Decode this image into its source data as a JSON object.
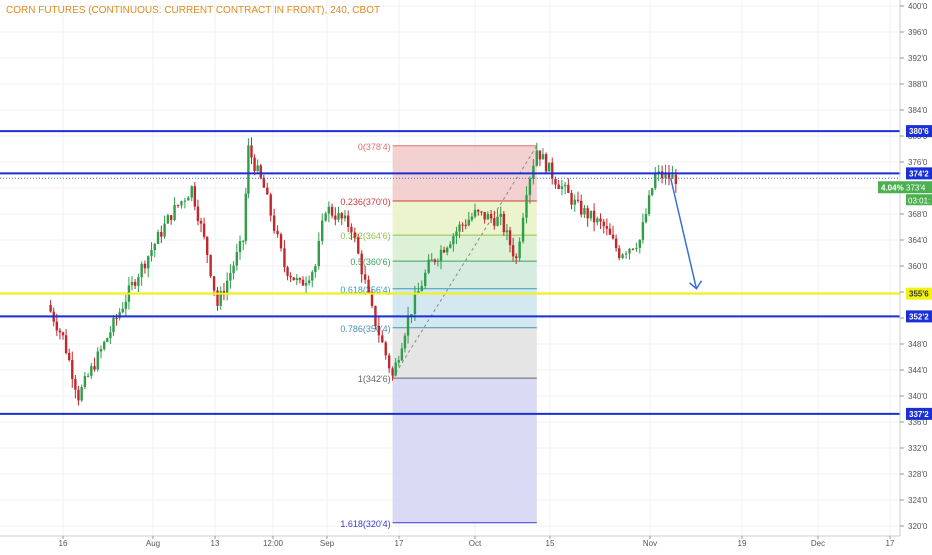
{
  "title": "CORN FUTURES (CONTINUOUS: CURRENT CONTRACT IN FRONT), 240, CBOT",
  "colors": {
    "accent_title": "#e08a1e",
    "horizontal_level": "#1a2fd6",
    "yellow_level": "#f2f20d",
    "candle_up": "#2e9e49",
    "candle_down": "#c2272d",
    "fib_trend": "#888888",
    "arrow": "#3b6fd4",
    "badge_green": "#4caf50"
  },
  "chart_data": {
    "type": "candlestick",
    "title": "CORN FUTURES (CONTINUOUS: CURRENT CONTRACT IN FRONT), 240, CBOT",
    "y_axis_ticks": [
      "400'0",
      "396'0",
      "392'0",
      "388'0",
      "384'0",
      "380'0",
      "376'0",
      "372'0",
      "368'0",
      "364'0",
      "360'0",
      "356'0",
      "352'0",
      "348'0",
      "344'0",
      "340'0",
      "336'0",
      "332'0",
      "328'0",
      "324'0",
      "320'0"
    ],
    "ylim": [
      319.5,
      401
    ],
    "x_axis_ticks": [
      "16",
      "Aug",
      "13",
      "12:00",
      "Sep",
      "17",
      "Oct",
      "15",
      "Nov",
      "19",
      "Dec",
      "17"
    ],
    "approx_close_path": [
      {
        "x": "Jul 13",
        "y": 354
      },
      {
        "x": "Jul 16",
        "y": 349
      },
      {
        "x": "Jul 19",
        "y": 340
      },
      {
        "x": "Jul 24",
        "y": 348
      },
      {
        "x": "Jul 30",
        "y": 358
      },
      {
        "x": "Aug 6",
        "y": 368
      },
      {
        "x": "Aug 10",
        "y": 372
      },
      {
        "x": "Aug 13",
        "y": 362
      },
      {
        "x": "Aug 15",
        "y": 354
      },
      {
        "x": "Aug 20",
        "y": 364
      },
      {
        "x": "Aug 21",
        "y": 378
      },
      {
        "x": "Aug 24",
        "y": 372
      },
      {
        "x": "Aug 28",
        "y": 360
      },
      {
        "x": "Aug 31",
        "y": 357
      },
      {
        "x": "Sep 3",
        "y": 360
      },
      {
        "x": "Sep 5",
        "y": 369
      },
      {
        "x": "Sep 10",
        "y": 366
      },
      {
        "x": "Sep 14",
        "y": 353
      },
      {
        "x": "Sep 18",
        "y": 343
      },
      {
        "x": "Sep 21",
        "y": 352
      },
      {
        "x": "Sep 25",
        "y": 360
      },
      {
        "x": "Oct 1",
        "y": 366
      },
      {
        "x": "Oct 4",
        "y": 368
      },
      {
        "x": "Oct 9",
        "y": 367
      },
      {
        "x": "Oct 12",
        "y": 361
      },
      {
        "x": "Oct 14",
        "y": 372
      },
      {
        "x": "Oct 16",
        "y": 378
      },
      {
        "x": "Oct 19",
        "y": 374
      },
      {
        "x": "Oct 24",
        "y": 369
      },
      {
        "x": "Oct 29",
        "y": 366
      },
      {
        "x": "Nov 1",
        "y": 362
      },
      {
        "x": "Nov 5",
        "y": 364
      },
      {
        "x": "Nov 8",
        "y": 374
      },
      {
        "x": "Nov 12",
        "y": 373.5
      }
    ],
    "horizontal_levels": [
      {
        "label": "380'6",
        "value": 380.75,
        "color": "#1a2fd6"
      },
      {
        "label": "374'2",
        "value": 374.25,
        "color": "#1a2fd6"
      },
      {
        "label": "355'6",
        "value": 355.75,
        "color": "#f2f20d"
      },
      {
        "label": "352'2",
        "value": 352.25,
        "color": "#1a2fd6"
      },
      {
        "label": "337'2",
        "value": 337.25,
        "color": "#1a2fd6"
      }
    ],
    "last_price_label": "373'4",
    "change_label": "4.04%",
    "countdown_label": "03:01:",
    "fibonacci": {
      "start": {
        "x": "Sep 18",
        "value": 342.75
      },
      "end": {
        "x": "Oct 16",
        "value": 378.5
      },
      "levels": [
        {
          "ratio": 0,
          "label": "0(378'4)",
          "value": 378.5,
          "fill": "#f2c9c9",
          "line": "#e07070"
        },
        {
          "ratio": 0.236,
          "label": "0.236(370'0)",
          "value": 370.0,
          "fill": "#e9f2c5",
          "line": "#d23c3c"
        },
        {
          "ratio": 0.382,
          "label": "0.382(364'6)",
          "value": 364.75,
          "fill": "#d6efcf",
          "line": "#8bc34a"
        },
        {
          "ratio": 0.5,
          "label": "0.5(360'6)",
          "value": 360.75,
          "fill": "#cfe9dc",
          "line": "#3aa35a"
        },
        {
          "ratio": 0.618,
          "label": "0.618(356'4)",
          "value": 356.5,
          "fill": "#cde4f0",
          "line": "#3a9bb8"
        },
        {
          "ratio": 0.786,
          "label": "0.786(350'4)",
          "value": 350.5,
          "fill": "#e0e0e0",
          "line": "#4a90b0"
        },
        {
          "ratio": 1,
          "label": "1(342'6)",
          "value": 342.75,
          "fill": "#d4d4f2",
          "line": "#666666"
        },
        {
          "ratio": 1.618,
          "label": "1.618(320'4)",
          "value": 320.5,
          "fill": "#d4d4f2",
          "line": "#3b3bd6"
        }
      ]
    },
    "projection_arrow": {
      "from": {
        "x": "Nov 11",
        "value": 373.5
      },
      "to": {
        "x": "Nov 16",
        "value": 356.5
      }
    },
    "grid": true
  }
}
